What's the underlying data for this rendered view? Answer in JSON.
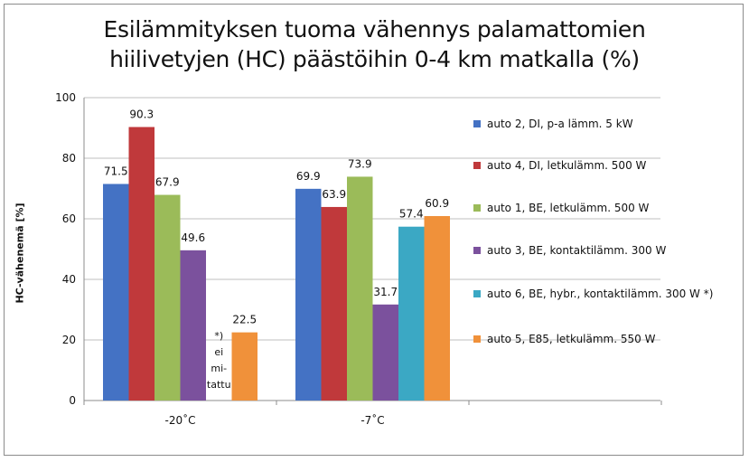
{
  "chart_data": {
    "type": "bar",
    "title_lines": [
      "Esilämmityksen tuoma vähennys palamattomien",
      "hiilivetyjen (HC) päästöihin 0-4 km matkalla (%)"
    ],
    "ylabel": "HC-vähenemä [%]",
    "ylim": [
      0,
      100
    ],
    "yticks": [
      0,
      20,
      40,
      60,
      80,
      100
    ],
    "grid": true,
    "legend_position": "right",
    "categories": [
      "-20˚C",
      "-7˚C"
    ],
    "series": [
      {
        "name": "auto 2, DI, p-a lämm. 5 kW",
        "color": "#4472c4",
        "values": [
          71.5,
          69.9
        ],
        "labels": [
          "71.5",
          "69.9"
        ]
      },
      {
        "name": "auto 4, DI, letkulämm. 500 W",
        "color": "#c0393b",
        "values": [
          90.3,
          63.9
        ],
        "labels": [
          "90.3",
          "63.9"
        ]
      },
      {
        "name": "auto 1, BE, letkulämm. 500 W",
        "color": "#9bbb59",
        "values": [
          67.9,
          73.9
        ],
        "labels": [
          "67.9",
          "73.9"
        ]
      },
      {
        "name": "auto 3, BE, kontaktilämm. 300 W",
        "color": "#7b519d",
        "values": [
          49.6,
          31.7
        ],
        "labels": [
          "49.6",
          "31.7"
        ]
      },
      {
        "name": "auto 6, BE, hybr., kontaktilämm. 300 W *)",
        "color": "#3ba8c4",
        "values": [
          null,
          57.4
        ],
        "labels": [
          "",
          "57.4"
        ]
      },
      {
        "name": "auto 5, E85, letkulämm. 550 W",
        "color": "#f0913a",
        "values": [
          22.5,
          60.9
        ],
        "labels": [
          "22.5",
          "60.9"
        ]
      }
    ],
    "annotations": [
      {
        "category": "-20˚C",
        "series_index": 4,
        "lines": [
          "*)",
          "ei",
          "mi-",
          "tattu"
        ]
      }
    ]
  }
}
